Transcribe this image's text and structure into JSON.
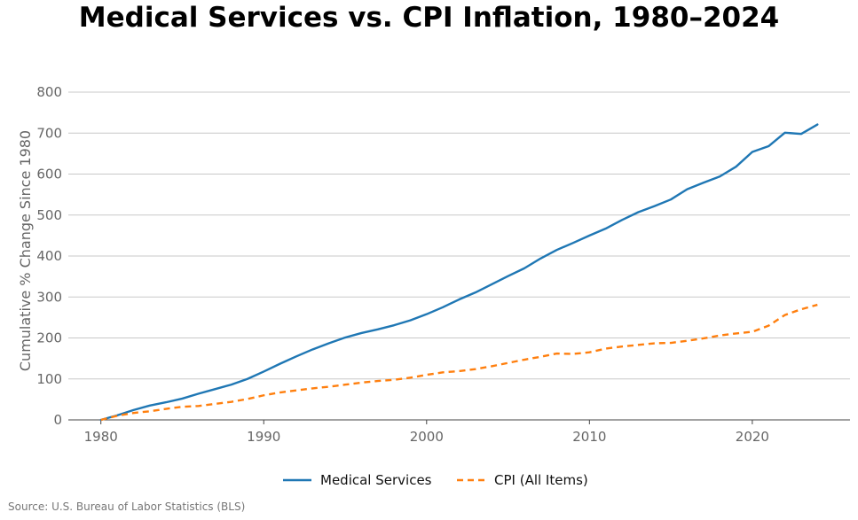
{
  "chart_data": {
    "type": "line",
    "title": "Medical Services vs. CPI Inflation, 1980–2024",
    "xlabel": "",
    "ylabel": "Cumulative % Change Since 1980",
    "xlim": [
      1978,
      2026
    ],
    "ylim": [
      0,
      800
    ],
    "x_ticks": [
      1980,
      1990,
      2000,
      2010,
      2020
    ],
    "y_ticks": [
      0,
      100,
      200,
      300,
      400,
      500,
      600,
      700,
      800
    ],
    "grid": "horizontal",
    "legend_position": "bottom-center",
    "x": [
      1980,
      1981,
      1982,
      1983,
      1984,
      1985,
      1986,
      1987,
      1988,
      1989,
      1990,
      1991,
      1992,
      1993,
      1994,
      1995,
      1996,
      1997,
      1998,
      1999,
      2000,
      2001,
      2002,
      2003,
      2004,
      2005,
      2006,
      2007,
      2008,
      2009,
      2010,
      2011,
      2012,
      2013,
      2014,
      2015,
      2016,
      2017,
      2018,
      2019,
      2020,
      2021,
      2022,
      2023,
      2024
    ],
    "series": [
      {
        "name": "Medical Services",
        "color": "#1f77b4",
        "style": "solid",
        "values": [
          0,
          11,
          24,
          35,
          43,
          52,
          64,
          75,
          86,
          100,
          118,
          137,
          155,
          172,
          187,
          201,
          212,
          221,
          231,
          243,
          258,
          275,
          294,
          311,
          331,
          351,
          370,
          394,
          415,
          432,
          450,
          467,
          488,
          507,
          522,
          538,
          563,
          579,
          594,
          618,
          654,
          668,
          701,
          698,
          721
        ]
      },
      {
        "name": "CPI (All Items)",
        "color": "#ff7f0e",
        "style": "dashed",
        "values": [
          0,
          10,
          17,
          21,
          27,
          32,
          34,
          39,
          44,
          51,
          60,
          67,
          72,
          77,
          81,
          86,
          91,
          95,
          98,
          103,
          110,
          116,
          119,
          124,
          131,
          139,
          147,
          154,
          162,
          161,
          165,
          174,
          179,
          183,
          187,
          188,
          193,
          199,
          206,
          211,
          215,
          230,
          256,
          270,
          281
        ]
      }
    ]
  },
  "source_note": "Source: U.S. Bureau of Labor Statistics (BLS)"
}
